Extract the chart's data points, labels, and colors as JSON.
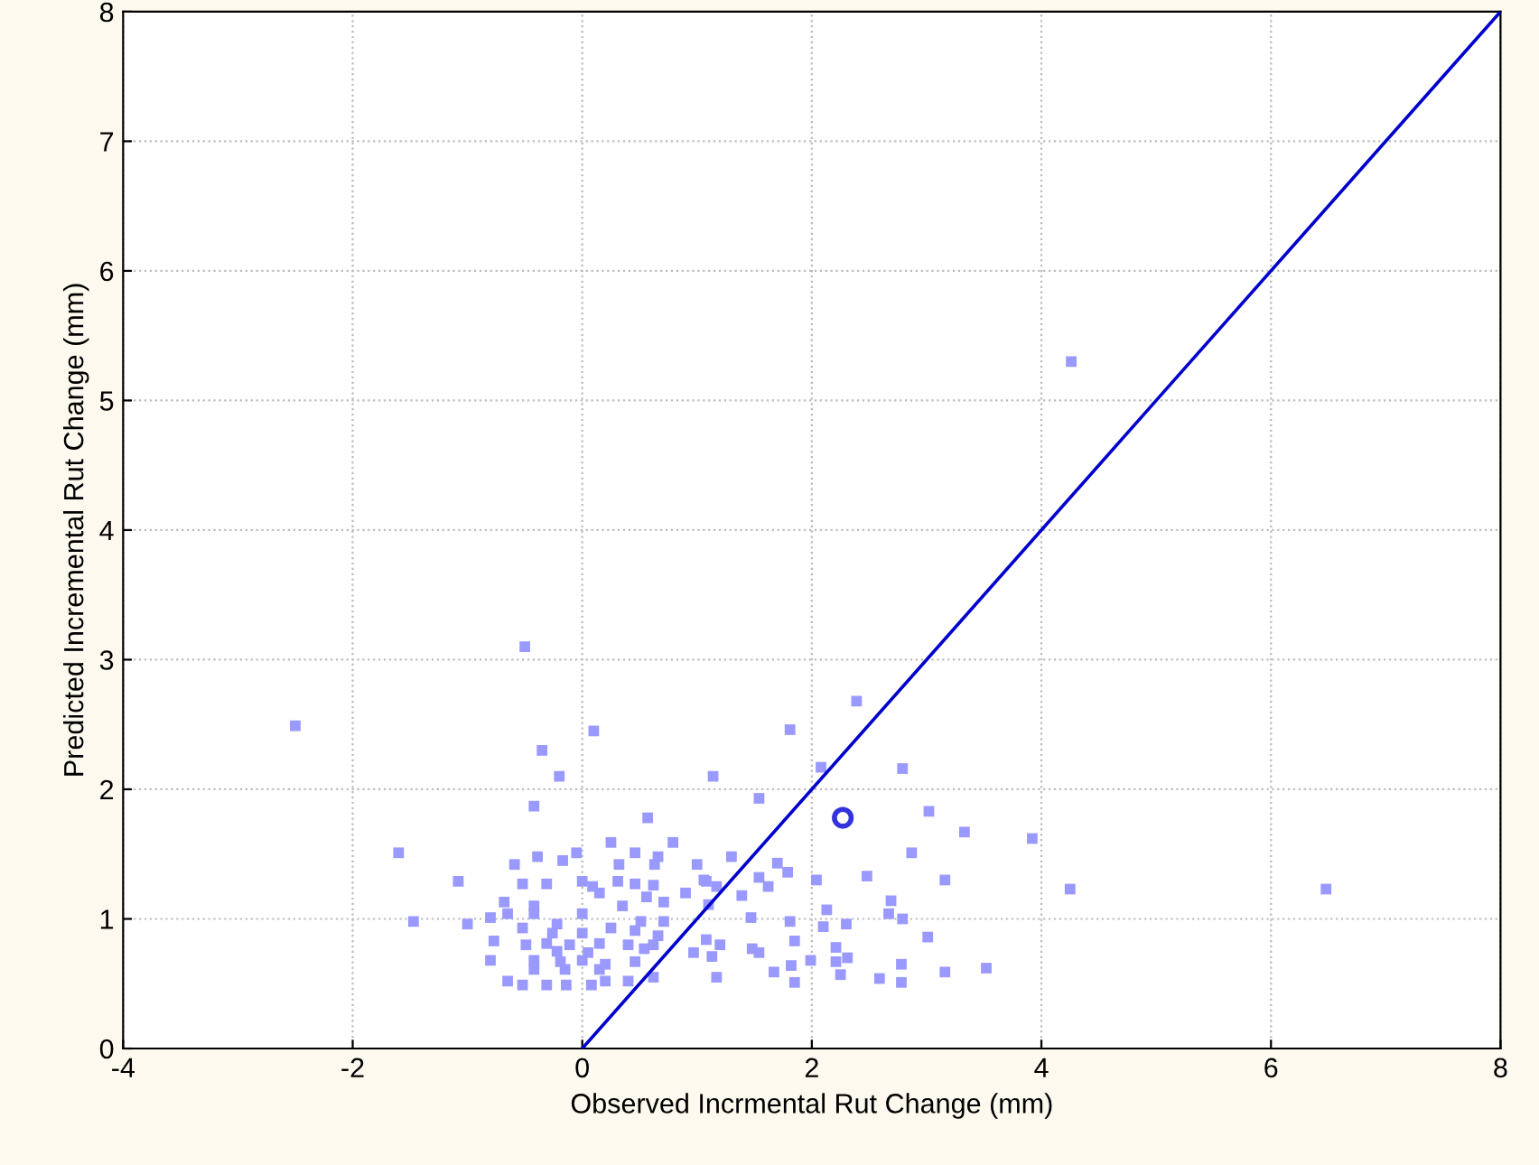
{
  "chart_data": {
    "type": "scatter",
    "xlabel": "Observed Incrmental Rut Change (mm)",
    "ylabel": "Predicted Incremental Rut Change (mm)",
    "xlim": [
      -4,
      8
    ],
    "ylim": [
      0,
      8
    ],
    "xticks": [
      -4,
      -2,
      0,
      2,
      4,
      6,
      8
    ],
    "yticks": [
      0,
      1,
      2,
      3,
      4,
      5,
      6,
      7,
      8
    ],
    "grid": true,
    "legend": false,
    "series": [
      {
        "color": "#9999ff",
        "marker": "square",
        "x": [
          4.26,
          4.25,
          6.48,
          -2.5,
          -0.5,
          0.1,
          -0.35,
          -0.2,
          2.39,
          1.81,
          2.08,
          2.79,
          1.14,
          1.54,
          3.02,
          3.33,
          3.92,
          2.87,
          1.3,
          1.06,
          1.7,
          1.79,
          2.04,
          2.48,
          3.16,
          1.54,
          1.62,
          1.17,
          1.39,
          1.1,
          2.13,
          2.69,
          2.67,
          2.79,
          1.47,
          1.81,
          2.3,
          2.1,
          1.08,
          1.2,
          1.48,
          1.85,
          2.21,
          3.01,
          1.13,
          1.54,
          2.21,
          2.31,
          1.99,
          2.78,
          3.52,
          3.16,
          1.67,
          1.82,
          1.17,
          1.85,
          2.25,
          2.59,
          2.78,
          -0.42,
          0.57,
          -1.6,
          -0.05,
          0.46,
          0.66,
          0.25,
          0.79,
          -0.39,
          -0.59,
          -0.17,
          0.32,
          0.63,
          1.0,
          -1.08,
          -0.52,
          -0.31,
          0.0,
          0.09,
          0.31,
          0.46,
          0.62,
          0.9,
          0.15,
          0.56,
          -0.68,
          -0.42,
          0.71,
          0.35,
          -0.65,
          -0.42,
          -0.8,
          0.0,
          -1.47,
          -1.0,
          -0.22,
          0.51,
          0.71,
          -0.52,
          -0.26,
          0.0,
          0.25,
          0.46,
          0.66,
          -0.77,
          -0.49,
          -0.31,
          -0.11,
          0.15,
          0.4,
          0.62,
          -0.22,
          0.05,
          0.54,
          -0.8,
          -0.42,
          -0.19,
          0.0,
          0.2,
          0.46,
          -0.42,
          -0.15,
          0.15,
          -0.65,
          -0.52,
          -0.31,
          -0.14,
          0.08,
          0.2,
          0.4,
          0.62,
          0.97,
          1.08
        ],
        "values": [
          5.3,
          1.23,
          1.23,
          2.49,
          3.1,
          2.45,
          2.3,
          2.1,
          2.68,
          2.46,
          2.17,
          2.16,
          2.1,
          1.93,
          1.83,
          1.67,
          1.62,
          1.51,
          1.48,
          1.3,
          1.43,
          1.36,
          1.3,
          1.33,
          1.3,
          1.32,
          1.25,
          1.25,
          1.18,
          1.11,
          1.07,
          1.14,
          1.04,
          1.0,
          1.01,
          0.98,
          0.96,
          0.94,
          0.84,
          0.8,
          0.77,
          0.83,
          0.78,
          0.86,
          0.71,
          0.74,
          0.67,
          0.7,
          0.68,
          0.65,
          0.62,
          0.59,
          0.59,
          0.64,
          0.55,
          0.51,
          0.57,
          0.54,
          0.51,
          1.87,
          1.78,
          1.51,
          1.51,
          1.51,
          1.48,
          1.59,
          1.59,
          1.48,
          1.42,
          1.45,
          1.42,
          1.42,
          1.42,
          1.29,
          1.27,
          1.27,
          1.29,
          1.25,
          1.29,
          1.27,
          1.26,
          1.2,
          1.2,
          1.17,
          1.13,
          1.1,
          1.13,
          1.1,
          1.04,
          1.04,
          1.01,
          1.04,
          0.98,
          0.96,
          0.96,
          0.98,
          0.98,
          0.93,
          0.89,
          0.89,
          0.93,
          0.91,
          0.87,
          0.83,
          0.8,
          0.81,
          0.8,
          0.81,
          0.8,
          0.8,
          0.75,
          0.74,
          0.77,
          0.68,
          0.68,
          0.67,
          0.68,
          0.65,
          0.67,
          0.61,
          0.61,
          0.61,
          0.52,
          0.49,
          0.49,
          0.49,
          0.49,
          0.52,
          0.52,
          0.55,
          0.74,
          1.29
        ]
      },
      {
        "color": "#3333dd",
        "marker": "circle",
        "x": [
          2.27
        ],
        "values": [
          1.78
        ]
      },
      {
        "type": "line",
        "color": "#0000cc",
        "x": [
          0,
          8
        ],
        "values": [
          0,
          8
        ]
      }
    ]
  }
}
